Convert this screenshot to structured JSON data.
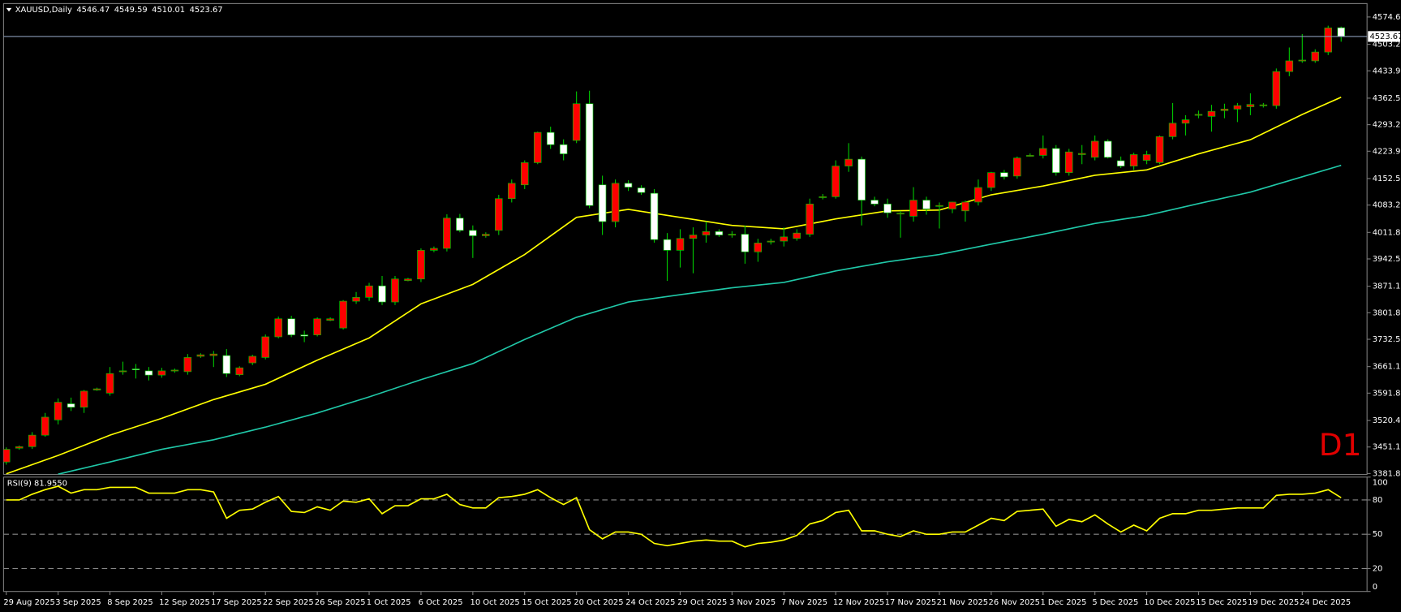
{
  "chart_data": [
    {
      "type": "candlestick",
      "title": "XAUUSD,Daily",
      "annotation": "D1",
      "categories": [
        "29 Aug 2025",
        null,
        null,
        null,
        "3 Sep 2025",
        null,
        null,
        null,
        "8 Sep 2025",
        null,
        null,
        null,
        "12 Sep 2025",
        null,
        null,
        null,
        "17 Sep 2025",
        null,
        null,
        null,
        "22 Sep 2025",
        null,
        null,
        null,
        "26 Sep 2025",
        null,
        null,
        null,
        "1 Oct 2025",
        null,
        null,
        null,
        "6 Oct 2025",
        null,
        null,
        null,
        "10 Oct 2025",
        null,
        null,
        null,
        "15 Oct 2025",
        null,
        null,
        null,
        "20 Oct 2025",
        null,
        null,
        null,
        "24 Oct 2025",
        null,
        null,
        null,
        "29 Oct 2025",
        null,
        null,
        null,
        "3 Nov 2025",
        null,
        null,
        null,
        "7 Nov 2025",
        null,
        null,
        null,
        "12 Nov 2025",
        null,
        null,
        null,
        "17 Nov 2025",
        null,
        null,
        null,
        "21 Nov 2025",
        null,
        null,
        null,
        "26 Nov 2025",
        null,
        null,
        null,
        "1 Dec 2025",
        null,
        null,
        null,
        "5 Dec 2025",
        null,
        null,
        null,
        "10 Dec 2025",
        null,
        null,
        null,
        "15 Dec 2025",
        null,
        null,
        null,
        "19 Dec 2025",
        null,
        null,
        null,
        "24 Dec 2025",
        null,
        null,
        null
      ],
      "ohlc": [
        [
          3412,
          3450,
          3405,
          3445
        ],
        [
          3448,
          3455,
          3444,
          3452
        ],
        [
          3452,
          3490,
          3446,
          3482
        ],
        [
          3482,
          3540,
          3478,
          3529
        ],
        [
          3522,
          3578,
          3510,
          3568
        ],
        [
          3564,
          3580,
          3545,
          3555
        ],
        [
          3555,
          3600,
          3540,
          3597
        ],
        [
          3600,
          3606,
          3598,
          3603
        ],
        [
          3592,
          3660,
          3585,
          3643
        ],
        [
          3648,
          3674,
          3640,
          3650
        ],
        [
          3655,
          3668,
          3630,
          3654
        ],
        [
          3650,
          3660,
          3625,
          3639
        ],
        [
          3639,
          3658,
          3632,
          3650
        ],
        [
          3650,
          3656,
          3645,
          3652
        ],
        [
          3648,
          3694,
          3640,
          3685
        ],
        [
          3688,
          3696,
          3684,
          3692
        ],
        [
          3690,
          3702,
          3660,
          3694
        ],
        [
          3690,
          3707,
          3634,
          3643
        ],
        [
          3640,
          3662,
          3636,
          3658
        ],
        [
          3671,
          3692,
          3665,
          3688
        ],
        [
          3685,
          3745,
          3680,
          3739
        ],
        [
          3739,
          3792,
          3735,
          3786
        ],
        [
          3786,
          3794,
          3738,
          3744
        ],
        [
          3744,
          3755,
          3725,
          3741
        ],
        [
          3744,
          3790,
          3740,
          3786
        ],
        [
          3782,
          3790,
          3780,
          3786
        ],
        [
          3762,
          3835,
          3758,
          3832
        ],
        [
          3832,
          3856,
          3825,
          3842
        ],
        [
          3842,
          3880,
          3833,
          3872
        ],
        [
          3872,
          3898,
          3822,
          3830
        ],
        [
          3830,
          3898,
          3822,
          3890
        ],
        [
          3886,
          3893,
          3884,
          3890
        ],
        [
          3890,
          3970,
          3882,
          3965
        ],
        [
          3965,
          3975,
          3960,
          3970
        ],
        [
          3970,
          4059,
          3962,
          4049
        ],
        [
          4049,
          4060,
          4012,
          4017
        ],
        [
          4017,
          4030,
          3945,
          4003
        ],
        [
          4003,
          4012,
          3998,
          4007
        ],
        [
          4017,
          4110,
          4005,
          4100
        ],
        [
          4100,
          4150,
          4090,
          4140
        ],
        [
          4136,
          4200,
          4125,
          4194
        ],
        [
          4194,
          4275,
          4190,
          4273
        ],
        [
          4273,
          4288,
          4230,
          4241
        ],
        [
          4241,
          4255,
          4200,
          4217
        ],
        [
          4252,
          4380,
          4245,
          4348
        ],
        [
          4348,
          4382,
          4075,
          4082
        ],
        [
          4136,
          4160,
          4005,
          4040
        ],
        [
          4040,
          4150,
          4025,
          4140
        ],
        [
          4140,
          4148,
          4120,
          4130
        ],
        [
          4128,
          4135,
          4110,
          4116
        ],
        [
          4114,
          4125,
          3985,
          3993
        ],
        [
          3993,
          4010,
          3885,
          3965
        ],
        [
          3965,
          4020,
          3920,
          3996
        ],
        [
          3996,
          4025,
          3905,
          4005
        ],
        [
          4005,
          4040,
          3985,
          4014
        ],
        [
          4014,
          4020,
          4000,
          4005
        ],
        [
          4005,
          4015,
          3998,
          4007
        ],
        [
          4007,
          4030,
          3930,
          3961
        ],
        [
          3961,
          3995,
          3935,
          3984
        ],
        [
          3988,
          3995,
          3980,
          3989
        ],
        [
          3989,
          4025,
          3975,
          4000
        ],
        [
          3996,
          4020,
          3990,
          4010
        ],
        [
          4007,
          4100,
          4000,
          4086
        ],
        [
          4103,
          4112,
          4098,
          4105
        ],
        [
          4105,
          4200,
          4100,
          4185
        ],
        [
          4185,
          4245,
          4170,
          4203
        ],
        [
          4203,
          4210,
          4030,
          4096
        ],
        [
          4096,
          4105,
          4080,
          4086
        ],
        [
          4086,
          4100,
          4050,
          4063
        ],
        [
          4060,
          4068,
          3998,
          4062
        ],
        [
          4054,
          4130,
          4040,
          4096
        ],
        [
          4096,
          4105,
          4058,
          4073
        ],
        [
          4080,
          4090,
          4022,
          4082
        ],
        [
          4073,
          4092,
          4062,
          4091
        ],
        [
          4068,
          4095,
          4040,
          4091
        ],
        [
          4091,
          4150,
          4082,
          4129
        ],
        [
          4129,
          4170,
          4120,
          4168
        ],
        [
          4168,
          4175,
          4150,
          4157
        ],
        [
          4159,
          4210,
          4152,
          4206
        ],
        [
          4212,
          4218,
          4210,
          4213
        ],
        [
          4213,
          4265,
          4205,
          4231
        ],
        [
          4231,
          4240,
          4160,
          4168
        ],
        [
          4168,
          4230,
          4160,
          4222
        ],
        [
          4215,
          4240,
          4190,
          4218
        ],
        [
          4208,
          4265,
          4200,
          4250
        ],
        [
          4250,
          4255,
          4205,
          4208
        ],
        [
          4199,
          4210,
          4180,
          4185
        ],
        [
          4185,
          4220,
          4175,
          4215
        ],
        [
          4200,
          4225,
          4190,
          4215
        ],
        [
          4194,
          4265,
          4190,
          4262
        ],
        [
          4262,
          4350,
          4255,
          4297
        ],
        [
          4297,
          4318,
          4265,
          4306
        ],
        [
          4318,
          4330,
          4310,
          4320
        ],
        [
          4315,
          4345,
          4275,
          4328
        ],
        [
          4330,
          4348,
          4310,
          4334
        ],
        [
          4334,
          4350,
          4300,
          4343
        ],
        [
          4340,
          4375,
          4318,
          4346
        ],
        [
          4343,
          4350,
          4338,
          4345
        ],
        [
          4343,
          4440,
          4335,
          4432
        ],
        [
          4432,
          4495,
          4420,
          4460
        ],
        [
          4460,
          4530,
          4455,
          4462
        ],
        [
          4460,
          4490,
          4455,
          4483
        ],
        [
          4483,
          4552,
          4475,
          4546
        ],
        [
          4546.47,
          4549.59,
          4510.01,
          4523.67
        ]
      ],
      "up_color": "#ff0000",
      "down_color": "#ffffff",
      "wick_color": "#00c800",
      "last_price_color": "#8a9bb8",
      "overlays": [
        {
          "color": "#ffff00",
          "x": [
            0,
            4,
            8,
            12,
            16,
            20,
            24,
            28,
            32,
            36,
            40,
            44,
            48,
            52,
            56,
            60,
            64,
            68,
            72,
            76,
            80,
            84,
            88,
            92,
            96,
            100,
            103
          ],
          "values": [
            3381,
            3429,
            3482,
            3526,
            3575,
            3615,
            3678,
            3736,
            3825,
            3876,
            3954,
            4051,
            4072,
            4051,
            4030,
            4021,
            4047,
            4068,
            4070,
            4110,
            4133,
            4161,
            4175,
            4217,
            4254,
            4320,
            4365
          ]
        },
        {
          "color": "#20c8a8",
          "x": [
            4,
            8,
            12,
            16,
            20,
            24,
            28,
            32,
            36,
            40,
            44,
            48,
            52,
            56,
            60,
            64,
            68,
            72,
            76,
            80,
            84,
            88,
            92,
            96,
            100,
            103
          ],
          "values": [
            3380,
            3412,
            3445,
            3470,
            3503,
            3540,
            3582,
            3627,
            3669,
            3732,
            3790,
            3830,
            3849,
            3867,
            3881,
            3911,
            3935,
            3954,
            3981,
            4007,
            4035,
            4056,
            4087,
            4117,
            4157,
            4187
          ]
        }
      ],
      "ylim": [
        3379.47,
        4607.28
      ],
      "yticks": [
        {
          "value": 4574.6,
          "label": "4574.60"
        },
        {
          "value": 4503.2,
          "label": "4503.20"
        },
        {
          "value": 4433.9,
          "label": "4433.90"
        },
        {
          "value": 4362.5,
          "label": "4362.50"
        },
        {
          "value": 4293.2,
          "label": "4293.20"
        },
        {
          "value": 4223.9,
          "label": "4223.90"
        },
        {
          "value": 4152.5,
          "label": "4152.50"
        },
        {
          "value": 4083.2,
          "label": "4083.20"
        },
        {
          "value": 4011.8,
          "label": "4011.80"
        },
        {
          "value": 3942.5,
          "label": "3942.50"
        },
        {
          "value": 3871.1,
          "label": "3871.10"
        },
        {
          "value": 3801.8,
          "label": "3801.80"
        },
        {
          "value": 3732.5,
          "label": "3732.50"
        },
        {
          "value": 3661.1,
          "label": "3661.10"
        },
        {
          "value": 3591.8,
          "label": "3591.80"
        },
        {
          "value": 3520.4,
          "label": "3520.40"
        },
        {
          "value": 3451.1,
          "label": "3451.10"
        },
        {
          "value": 3381.8,
          "label": "3381.80"
        }
      ]
    },
    {
      "type": "line",
      "title": "RSI(9) 81.9550",
      "color": "#ffff00",
      "level_color": "#8a8a8a",
      "values": [
        80,
        80,
        85,
        89,
        92,
        86,
        89,
        89,
        91,
        91,
        91,
        86,
        86,
        86,
        89,
        89,
        87,
        64,
        71,
        72,
        78,
        83,
        70,
        69,
        74,
        71,
        79,
        78,
        81,
        68,
        75,
        75,
        81,
        81,
        85,
        76,
        73,
        73,
        82,
        83,
        85,
        89,
        82,
        76,
        82,
        54,
        46,
        52,
        52,
        50,
        42,
        40,
        42,
        44,
        45,
        44,
        44,
        39,
        42,
        43,
        45,
        49,
        59,
        62,
        69,
        71,
        53,
        53,
        50,
        48,
        53,
        50,
        50,
        52,
        52,
        58,
        64,
        62,
        70,
        71,
        72,
        57,
        63,
        61,
        67,
        59,
        52,
        58,
        53,
        64,
        68,
        68,
        71,
        71,
        72,
        73,
        73,
        73,
        84,
        85,
        85,
        86,
        89,
        81.955
      ],
      "levels": [
        80,
        50,
        20
      ],
      "ylim": [
        0,
        100
      ],
      "yticks": [
        0,
        20,
        50,
        80,
        100
      ]
    }
  ]
}
